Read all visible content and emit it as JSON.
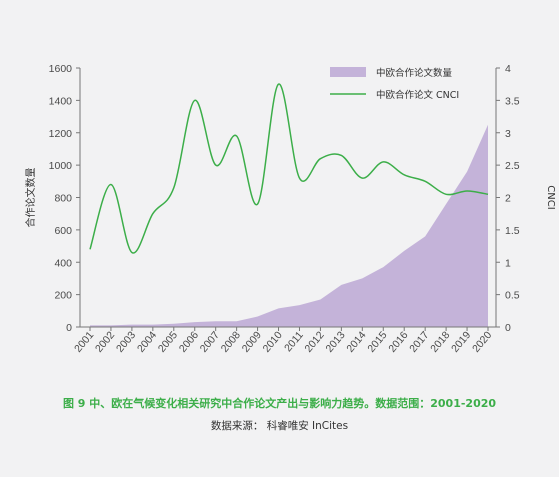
{
  "chart_data": {
    "type": "area+line",
    "categories": [
      "2001",
      "2002",
      "2003",
      "2004",
      "2005",
      "2006",
      "2007",
      "2008",
      "2009",
      "2010",
      "2011",
      "2012",
      "2013",
      "2014",
      "2015",
      "2016",
      "2017",
      "2018",
      "2019",
      "2020"
    ],
    "series": [
      {
        "name": "中欧合作论文数量",
        "type": "area",
        "axis": "left",
        "color": "#c4b3d9",
        "values": [
          10,
          10,
          15,
          15,
          20,
          30,
          35,
          35,
          65,
          115,
          135,
          170,
          260,
          300,
          370,
          470,
          560,
          760,
          960,
          1250
        ]
      },
      {
        "name": "中欧合作论文 CNCI",
        "type": "line",
        "axis": "right",
        "color": "#3cae49",
        "values": [
          1.2,
          2.2,
          1.15,
          1.75,
          2.15,
          3.5,
          2.5,
          2.95,
          1.9,
          3.75,
          2.3,
          2.6,
          2.65,
          2.3,
          2.55,
          2.35,
          2.25,
          2.05,
          2.1,
          2.05
        ]
      }
    ],
    "ylabel": "合作论文数量",
    "ylabel_right": "CNCI",
    "ylim": [
      0,
      1600
    ],
    "ylim_right": [
      0,
      4
    ],
    "yticks": [
      "0",
      "200",
      "400",
      "600",
      "800",
      "1000",
      "1200",
      "1400",
      "1600"
    ],
    "yticks_right": [
      "0",
      "0.5",
      "1",
      "1.5",
      "2",
      "2.5",
      "3",
      "3.5",
      "4"
    ],
    "legend_position": "top-right",
    "grid": false
  },
  "caption": "图 9  中、欧在气候变化相关研究中合作论文产出与影响力趋势。数据范围：2001-2020",
  "source": "数据来源：  科睿唯安 InCites"
}
